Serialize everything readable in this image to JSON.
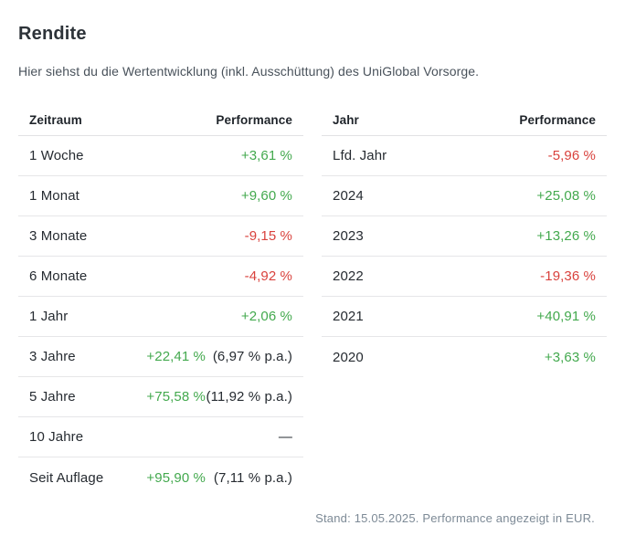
{
  "title": "Rendite",
  "subtitle": "Hier siehst du die Wertentwicklung (inkl. Ausschüttung) des UniGlobal Vorsorge.",
  "colors": {
    "positive": "#43a94e",
    "negative": "#d9423d"
  },
  "tables": [
    {
      "headers": [
        "Zeitraum",
        "Performance"
      ],
      "rows": [
        {
          "label": "1 Woche",
          "value": "+3,61 %",
          "trend": "positive"
        },
        {
          "label": "1 Monat",
          "value": "+9,60 %",
          "trend": "positive"
        },
        {
          "label": "3 Monate",
          "value": "-9,15 %",
          "trend": "negative"
        },
        {
          "label": "6 Monate",
          "value": "-4,92 %",
          "trend": "negative"
        },
        {
          "label": "1 Jahr",
          "value": "+2,06 %",
          "trend": "positive"
        },
        {
          "label": "3 Jahre",
          "value": "+22,41 %",
          "trend": "positive",
          "pa": "(6,97 % p.a.)"
        },
        {
          "label": "5 Jahre",
          "value": "+75,58 %",
          "trend": "positive",
          "pa": "(11,92 % p.a.)"
        },
        {
          "label": "10 Jahre",
          "value": "—",
          "trend": "neutral"
        },
        {
          "label": "Seit Auflage",
          "value": "+95,90 %",
          "trend": "positive",
          "pa": "(7,11 % p.a.)"
        }
      ]
    },
    {
      "headers": [
        "Jahr",
        "Performance"
      ],
      "rows": [
        {
          "label": "Lfd. Jahr",
          "value": "-5,96 %",
          "trend": "negative"
        },
        {
          "label": "2024",
          "value": "+25,08 %",
          "trend": "positive"
        },
        {
          "label": "2023",
          "value": "+13,26 %",
          "trend": "positive"
        },
        {
          "label": "2022",
          "value": "-19,36 %",
          "trend": "negative"
        },
        {
          "label": "2021",
          "value": "+40,91 %",
          "trend": "positive"
        },
        {
          "label": "2020",
          "value": "+3,63 %",
          "trend": "positive"
        }
      ]
    }
  ],
  "footer": "Stand: 15.05.2025. Performance angezeigt in EUR."
}
